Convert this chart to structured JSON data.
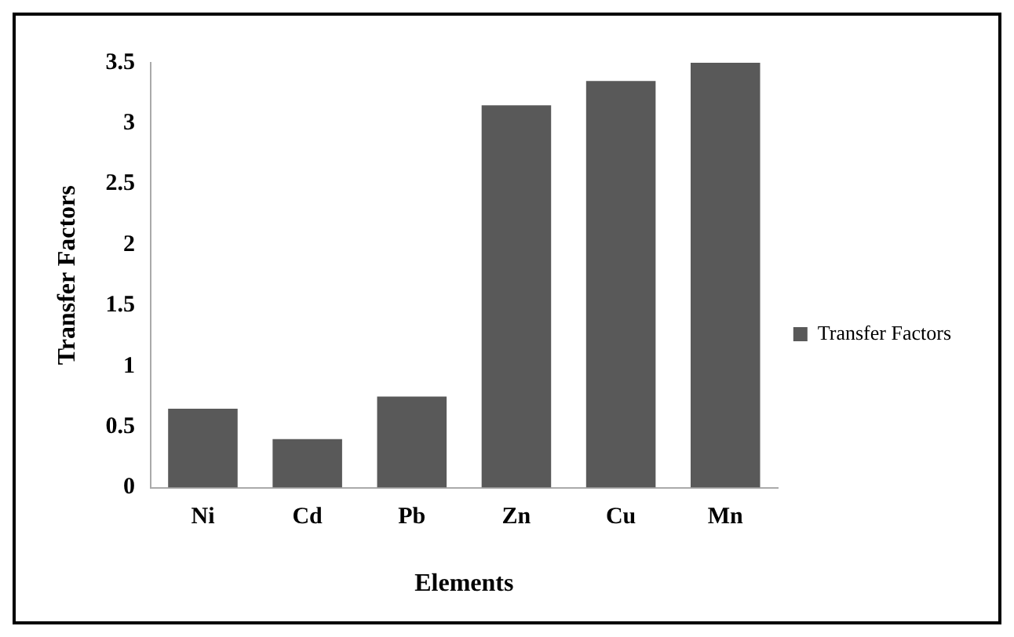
{
  "chart_data": {
    "type": "bar",
    "xlabel": "Elements",
    "ylabel": "Transfer Factors",
    "categories": [
      "Ni",
      "Cd",
      "Pb",
      "Zn",
      "Cu",
      "Mn"
    ],
    "series": [
      {
        "name": "Transfer Factors",
        "color": "#595959",
        "values": [
          0.65,
          0.4,
          0.75,
          3.15,
          3.35,
          3.5
        ]
      }
    ],
    "ylim": [
      0,
      3.5
    ],
    "yticks": [
      0,
      0.5,
      1,
      1.5,
      2,
      2.5,
      3,
      3.5
    ],
    "grid": false,
    "legend": "right"
  }
}
